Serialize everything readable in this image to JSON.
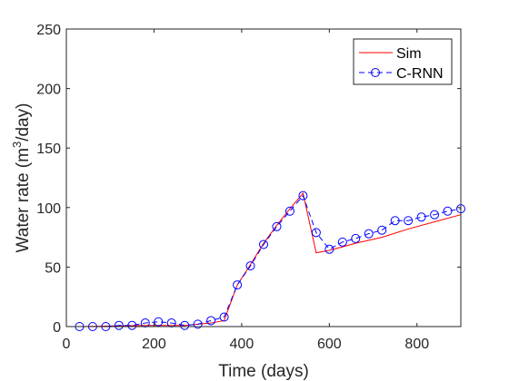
{
  "chart_data": {
    "type": "line",
    "xlabel": "Time (days)",
    "ylabel": {
      "prefix": "Water rate (m",
      "superscript": "3",
      "suffix": "/day)"
    },
    "xlim": [
      0,
      900
    ],
    "ylim": [
      0,
      250
    ],
    "xticks": [
      0,
      200,
      400,
      600,
      800
    ],
    "yticks": [
      0,
      50,
      100,
      150,
      200,
      250
    ],
    "grid": false,
    "legend_position": "top-right",
    "series": [
      {
        "name": "Sim",
        "color": "#ff0000",
        "line_style": "solid",
        "marker": "none",
        "x": [
          30,
          180,
          270,
          300,
          330,
          360,
          390,
          420,
          450,
          480,
          510,
          540,
          570,
          600,
          660,
          720,
          780,
          840,
          900
        ],
        "y": [
          0,
          1,
          1,
          2,
          3,
          5,
          35,
          52,
          70,
          85,
          99,
          112,
          62,
          64,
          70,
          75,
          82,
          88,
          94
        ]
      },
      {
        "name": "C-RNN",
        "color": "#0000ff",
        "line_style": "dashed",
        "marker": "circle",
        "x": [
          30,
          60,
          90,
          120,
          150,
          180,
          210,
          240,
          270,
          300,
          330,
          360,
          390,
          420,
          450,
          480,
          510,
          540,
          570,
          600,
          630,
          660,
          690,
          720,
          750,
          780,
          810,
          840,
          870,
          900
        ],
        "y": [
          0,
          0,
          0,
          1,
          1,
          3,
          4,
          3,
          1,
          2,
          5,
          8,
          35,
          51,
          69,
          84,
          97,
          110,
          79,
          65,
          71,
          74,
          78,
          81,
          89,
          89,
          92,
          94,
          97,
          99
        ]
      }
    ]
  }
}
